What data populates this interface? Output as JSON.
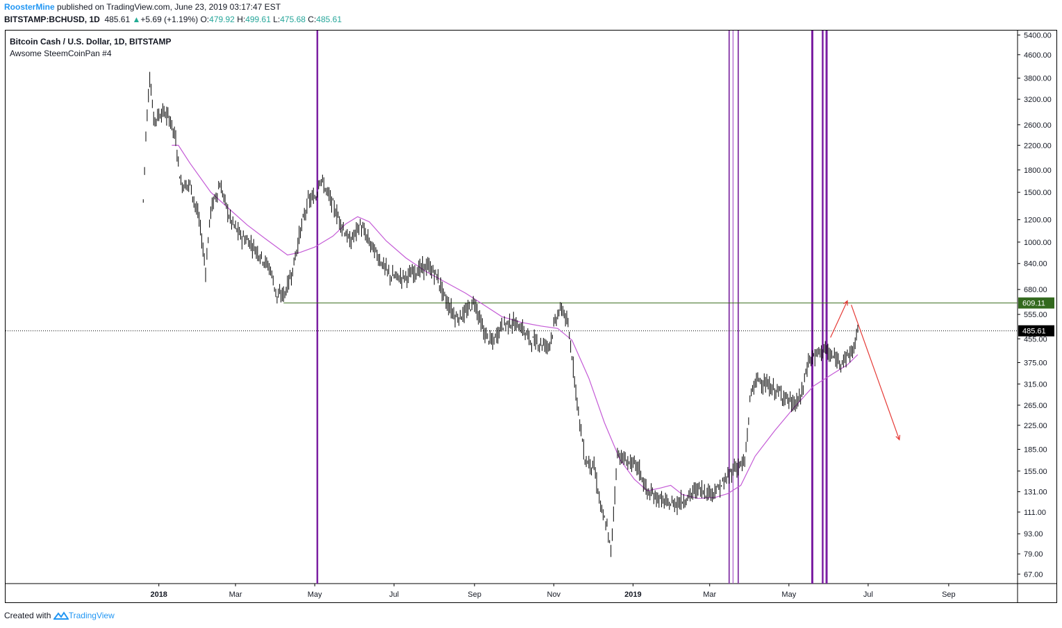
{
  "header": {
    "publisher": "RoosterMine",
    "published_text": " published on TradingView.com, June 23, 2019 03:17:47 EST",
    "symbol": "BITSTAMP:BCHUSD, 1D",
    "last": "485.61",
    "change_arrow": "▲",
    "change": "+5.69 (+1.19%)",
    "o_label": "O:",
    "open": "479.92",
    "h_label": "H:",
    "high": "499.61",
    "l_label": "L:",
    "low": "475.68",
    "c_label": "C:",
    "close": "485.61"
  },
  "chart_data": {
    "type": "candlestick",
    "title": "Bitcoin Cash / U.S. Dollar, 1D, BITSTAMP",
    "subtitle": "Awsome SteemCoinPan #4",
    "y_scale": "log",
    "ylim": [
      62,
      5600
    ],
    "y_ticks": [
      "5400.00",
      "4600.00",
      "3800.00",
      "3200.00",
      "2600.00",
      "2200.00",
      "1800.00",
      "1500.00",
      "1200.00",
      "1000.00",
      "840.00",
      "680.00",
      "555.00",
      "455.00",
      "375.00",
      "315.00",
      "265.00",
      "225.00",
      "185.00",
      "155.00",
      "131.00",
      "111.00",
      "93.00",
      "79.00",
      "67.00"
    ],
    "x_range": [
      "2017-09-05",
      "2019-10-24"
    ],
    "x_ticks": [
      {
        "label": "2018",
        "date": "2018-01-01",
        "bold": true
      },
      {
        "label": "Mar",
        "date": "2018-03-01",
        "bold": false
      },
      {
        "label": "May",
        "date": "2018-05-01",
        "bold": false
      },
      {
        "label": "Jul",
        "date": "2018-07-01",
        "bold": false
      },
      {
        "label": "Sep",
        "date": "2018-09-01",
        "bold": false
      },
      {
        "label": "Nov",
        "date": "2018-11-01",
        "bold": false
      },
      {
        "label": "2019",
        "date": "2019-01-01",
        "bold": true
      },
      {
        "label": "Mar",
        "date": "2019-03-01",
        "bold": false
      },
      {
        "label": "May",
        "date": "2019-05-01",
        "bold": false
      },
      {
        "label": "Jul",
        "date": "2019-07-01",
        "bold": false
      },
      {
        "label": "Sep",
        "date": "2019-09-01",
        "bold": false
      }
    ],
    "price_path": [
      [
        "2017-12-20",
        1400
      ],
      [
        "2017-12-22",
        2400
      ],
      [
        "2017-12-25",
        3900
      ],
      [
        "2017-12-28",
        2700
      ],
      [
        "2018-01-04",
        2900
      ],
      [
        "2018-01-10",
        2700
      ],
      [
        "2018-01-14",
        2300
      ],
      [
        "2018-01-18",
        1600
      ],
      [
        "2018-01-25",
        1600
      ],
      [
        "2018-02-01",
        1200
      ],
      [
        "2018-02-06",
        800
      ],
      [
        "2018-02-10",
        1300
      ],
      [
        "2018-02-17",
        1600
      ],
      [
        "2018-02-25",
        1200
      ],
      [
        "2018-03-05",
        1050
      ],
      [
        "2018-03-12",
        1000
      ],
      [
        "2018-03-20",
        900
      ],
      [
        "2018-03-28",
        800
      ],
      [
        "2018-04-02",
        640
      ],
      [
        "2018-04-08",
        660
      ],
      [
        "2018-04-14",
        800
      ],
      [
        "2018-04-20",
        1100
      ],
      [
        "2018-04-26",
        1400
      ],
      [
        "2018-05-02",
        1450
      ],
      [
        "2018-05-05",
        1700
      ],
      [
        "2018-05-12",
        1450
      ],
      [
        "2018-05-20",
        1200
      ],
      [
        "2018-05-28",
        1000
      ],
      [
        "2018-06-05",
        1150
      ],
      [
        "2018-06-12",
        1000
      ],
      [
        "2018-06-20",
        870
      ],
      [
        "2018-06-28",
        760
      ],
      [
        "2018-07-05",
        750
      ],
      [
        "2018-07-12",
        760
      ],
      [
        "2018-07-20",
        800
      ],
      [
        "2018-07-27",
        820
      ],
      [
        "2018-08-03",
        760
      ],
      [
        "2018-08-10",
        620
      ],
      [
        "2018-08-18",
        540
      ],
      [
        "2018-08-25",
        560
      ],
      [
        "2018-09-01",
        620
      ],
      [
        "2018-09-08",
        480
      ],
      [
        "2018-09-15",
        440
      ],
      [
        "2018-09-22",
        510
      ],
      [
        "2018-09-29",
        520
      ],
      [
        "2018-10-07",
        500
      ],
      [
        "2018-10-14",
        450
      ],
      [
        "2018-10-21",
        440
      ],
      [
        "2018-10-28",
        430
      ],
      [
        "2018-11-04",
        560
      ],
      [
        "2018-11-08",
        580
      ],
      [
        "2018-11-12",
        500
      ],
      [
        "2018-11-15",
        400
      ],
      [
        "2018-11-20",
        250
      ],
      [
        "2018-11-25",
        170
      ],
      [
        "2018-12-02",
        160
      ],
      [
        "2018-12-08",
        110
      ],
      [
        "2018-12-12",
        98
      ],
      [
        "2018-12-15",
        80
      ],
      [
        "2018-12-20",
        180
      ],
      [
        "2018-12-25",
        170
      ],
      [
        "2018-12-31",
        165
      ],
      [
        "2019-01-05",
        160
      ],
      [
        "2019-01-12",
        130
      ],
      [
        "2019-01-20",
        125
      ],
      [
        "2019-01-28",
        118
      ],
      [
        "2019-02-05",
        120
      ],
      [
        "2019-02-12",
        125
      ],
      [
        "2019-02-20",
        135
      ],
      [
        "2019-02-28",
        130
      ],
      [
        "2019-03-07",
        133
      ],
      [
        "2019-03-14",
        145
      ],
      [
        "2019-03-20",
        160
      ],
      [
        "2019-03-28",
        165
      ],
      [
        "2019-04-02",
        300
      ],
      [
        "2019-04-08",
        330
      ],
      [
        "2019-04-14",
        310
      ],
      [
        "2019-04-20",
        300
      ],
      [
        "2019-04-28",
        285
      ],
      [
        "2019-05-04",
        265
      ],
      [
        "2019-05-10",
        280
      ],
      [
        "2019-05-16",
        380
      ],
      [
        "2019-05-22",
        400
      ],
      [
        "2019-05-28",
        420
      ],
      [
        "2019-06-01",
        400
      ],
      [
        "2019-06-08",
        380
      ],
      [
        "2019-06-14",
        390
      ],
      [
        "2019-06-20",
        420
      ],
      [
        "2019-06-23",
        485.61
      ]
    ],
    "moving_average": [
      [
        "2018-01-11",
        2200
      ],
      [
        "2018-01-16",
        2200
      ],
      [
        "2018-01-25",
        1900
      ],
      [
        "2018-02-10",
        1500
      ],
      [
        "2018-02-25",
        1300
      ],
      [
        "2018-03-10",
        1150
      ],
      [
        "2018-03-25",
        1020
      ],
      [
        "2018-04-10",
        900
      ],
      [
        "2018-04-20",
        920
      ],
      [
        "2018-05-01",
        960
      ],
      [
        "2018-05-15",
        1050
      ],
      [
        "2018-05-25",
        1160
      ],
      [
        "2018-06-03",
        1230
      ],
      [
        "2018-06-12",
        1180
      ],
      [
        "2018-06-25",
        1010
      ],
      [
        "2018-07-10",
        880
      ],
      [
        "2018-07-25",
        790
      ],
      [
        "2018-08-10",
        720
      ],
      [
        "2018-08-25",
        660
      ],
      [
        "2018-09-08",
        600
      ],
      [
        "2018-09-22",
        545
      ],
      [
        "2018-10-07",
        520
      ],
      [
        "2018-10-22",
        505
      ],
      [
        "2018-11-04",
        495
      ],
      [
        "2018-11-15",
        450
      ],
      [
        "2018-11-28",
        330
      ],
      [
        "2018-12-10",
        230
      ],
      [
        "2018-12-22",
        170
      ],
      [
        "2019-01-02",
        145
      ],
      [
        "2019-01-12",
        132
      ],
      [
        "2019-01-22",
        135
      ],
      [
        "2019-01-30",
        138
      ],
      [
        "2019-02-08",
        128
      ],
      [
        "2019-02-20",
        124
      ],
      [
        "2019-03-05",
        125
      ],
      [
        "2019-03-15",
        129
      ],
      [
        "2019-03-25",
        138
      ],
      [
        "2019-04-05",
        175
      ],
      [
        "2019-04-20",
        215
      ],
      [
        "2019-05-05",
        260
      ],
      [
        "2019-05-20",
        310
      ],
      [
        "2019-06-05",
        345
      ],
      [
        "2019-06-15",
        368
      ],
      [
        "2019-06-23",
        400
      ]
    ],
    "vertical_lines": [
      {
        "date": "2018-05-03",
        "color": "#7b1fa2",
        "width": 2.5
      },
      {
        "date": "2019-03-16",
        "color": "#8e44ad",
        "width": 2
      },
      {
        "date": "2019-03-19",
        "color": "#a855c9",
        "width": 1.2
      },
      {
        "date": "2019-03-23",
        "color": "#8e44ad",
        "width": 2
      },
      {
        "date": "2019-05-19",
        "color": "#7b1fa2",
        "width": 3
      },
      {
        "date": "2019-05-27",
        "color": "#7b1fa2",
        "width": 2.5
      },
      {
        "date": "2019-05-30",
        "color": "#7b1fa2",
        "width": 3
      }
    ],
    "horizontal_line": {
      "value": 609.11,
      "from": "2018-04-07",
      "label": "609.11",
      "color": "#3a6d1b",
      "label_bg": "#33691e"
    },
    "last_price_line": {
      "value": 485.61,
      "label": "485.61"
    },
    "arrows": [
      {
        "from": [
          "2019-06-02",
          460
        ],
        "to": [
          "2019-06-15",
          620
        ],
        "color": "#e53935"
      },
      {
        "from": [
          "2019-06-18",
          600
        ],
        "to": [
          "2019-07-25",
          200
        ],
        "color": "#e53935"
      }
    ]
  },
  "footer": {
    "created_with": "Created with",
    "brand": "TradingView"
  }
}
